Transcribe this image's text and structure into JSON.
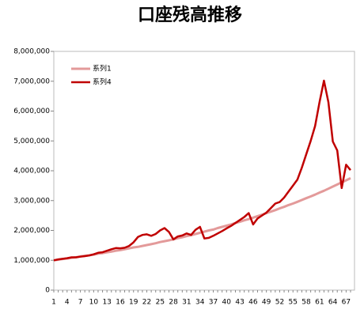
{
  "chart_data": {
    "type": "line",
    "title": "口座残高推移",
    "categories": [
      1,
      null,
      null,
      4,
      null,
      null,
      7,
      null,
      null,
      10,
      null,
      null,
      13,
      null,
      null,
      16,
      null,
      null,
      19,
      null,
      null,
      22,
      null,
      null,
      25,
      null,
      null,
      28,
      null,
      null,
      31,
      null,
      null,
      34,
      null,
      null,
      37,
      null,
      null,
      40,
      null,
      null,
      43,
      null,
      null,
      46,
      null,
      null,
      49,
      null,
      null,
      52,
      null,
      null,
      55,
      null,
      null,
      58,
      null,
      null,
      61,
      null,
      null,
      64,
      null,
      null,
      67,
      null
    ],
    "series": [
      {
        "name": "系列1",
        "color": "#e39a9a",
        "values": [
          1000000,
          1020000,
          1040000,
          1060000,
          1080000,
          1100000,
          1130000,
          1150000,
          1170000,
          1190000,
          1220000,
          1240000,
          1270000,
          1290000,
          1320000,
          1340000,
          1370000,
          1400000,
          1430000,
          1450000,
          1480000,
          1510000,
          1540000,
          1570000,
          1610000,
          1640000,
          1670000,
          1700000,
          1740000,
          1770000,
          1810000,
          1840000,
          1880000,
          1920000,
          1960000,
          2000000,
          2030000,
          2080000,
          2120000,
          2160000,
          2200000,
          2250000,
          2290000,
          2340000,
          2380000,
          2430000,
          2480000,
          2530000,
          2580000,
          2630000,
          2680000,
          2740000,
          2790000,
          2850000,
          2900000,
          2960000,
          3020000,
          3080000,
          3140000,
          3200000,
          3270000,
          3330000,
          3400000,
          3470000,
          3540000,
          3610000,
          3680000,
          3750000
        ]
      },
      {
        "name": "系列4",
        "color": "#c00000",
        "values": [
          1000000,
          1030000,
          1050000,
          1070000,
          1100000,
          1100000,
          1120000,
          1140000,
          1160000,
          1200000,
          1250000,
          1270000,
          1320000,
          1370000,
          1410000,
          1400000,
          1420000,
          1480000,
          1600000,
          1780000,
          1850000,
          1870000,
          1820000,
          1880000,
          2000000,
          2080000,
          1950000,
          1700000,
          1800000,
          1830000,
          1900000,
          1850000,
          2020000,
          2120000,
          1730000,
          1750000,
          1820000,
          1900000,
          1980000,
          2070000,
          2150000,
          2250000,
          2350000,
          2450000,
          2580000,
          2200000,
          2400000,
          2500000,
          2600000,
          2750000,
          2900000,
          2950000,
          3100000,
          3300000,
          3500000,
          3700000,
          4100000,
          4550000,
          5000000,
          5500000,
          6300000,
          7020000,
          6300000,
          4980000,
          4680000,
          3420000,
          4200000,
          4020000
        ]
      }
    ],
    "ylim": [
      0,
      8000000
    ],
    "yticks": [
      0,
      {
        "value": 1000000,
        "label": "1,000,000"
      },
      {
        "value": 2000000,
        "label": "2,000,000"
      },
      {
        "value": 3000000,
        "label": "3,000,000"
      },
      {
        "value": 4000000,
        "label": "4,000,000"
      },
      {
        "value": 5000000,
        "label": "5,000,000"
      },
      {
        "value": 6000000,
        "label": "6,000,000"
      },
      {
        "value": 7000000,
        "label": "7,000,000"
      },
      {
        "value": 8000000,
        "label": "8,000,000"
      }
    ],
    "legend": "upper left"
  }
}
